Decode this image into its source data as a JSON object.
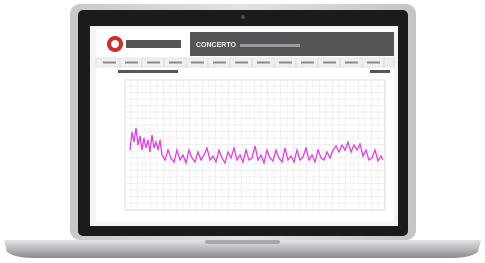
{
  "header": {
    "title": "CONCERTO"
  }
}
